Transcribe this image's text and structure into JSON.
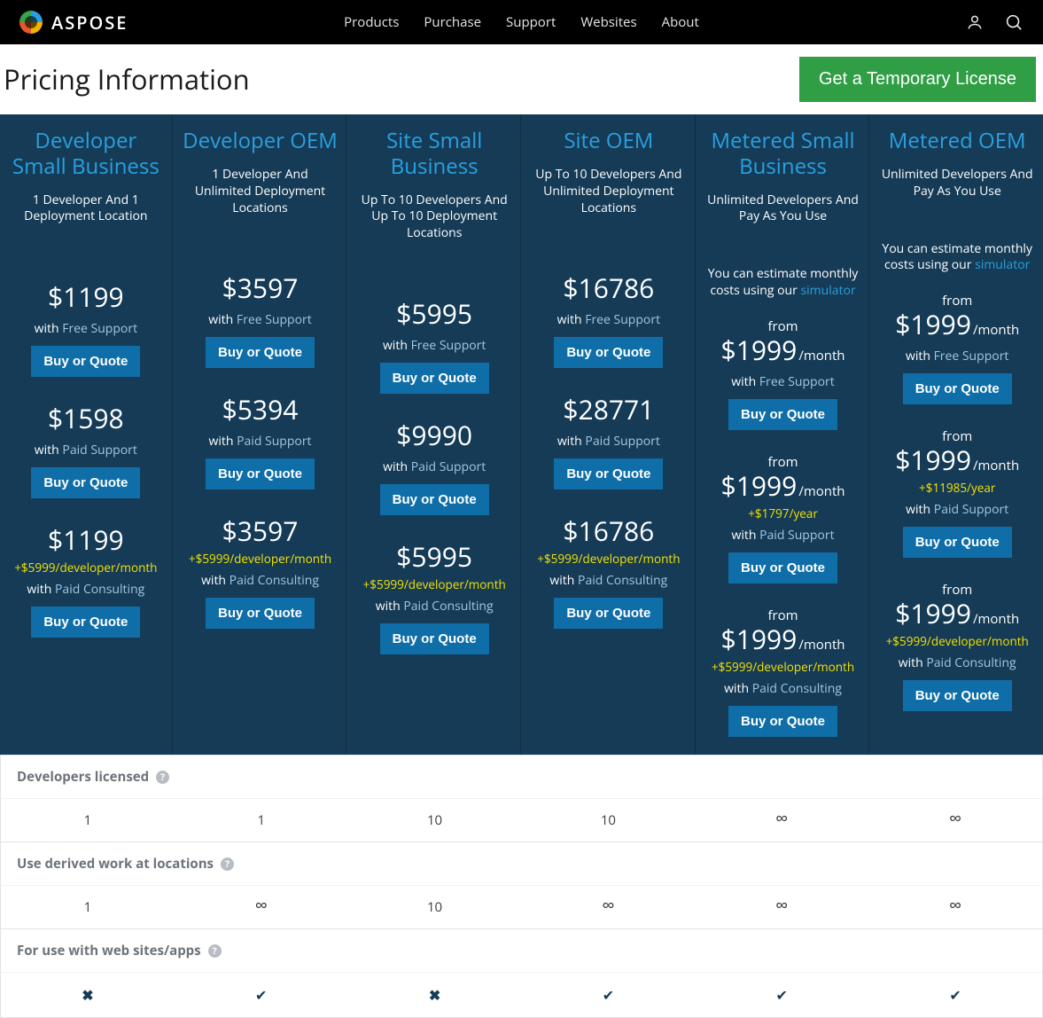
{
  "brand": "ASPOSE",
  "nav": [
    "Products",
    "Purchase",
    "Support",
    "Websites",
    "About"
  ],
  "page_title": "Pricing Information",
  "temp_license": "Get a Temporary License",
  "buy_label": "Buy or Quote",
  "with_prefix": "with ",
  "from_label": "from",
  "support": {
    "free": "Free Support",
    "paid": "Paid Support",
    "consulting": "Paid Consulting"
  },
  "estimator_prefix": "You can estimate monthly costs using our ",
  "estimator_link": "simulator",
  "plans": [
    {
      "title": "Developer Small Business",
      "sub": "1 Developer And 1 Deployment Location",
      "tiers": [
        {
          "price": "$1199",
          "support": "free"
        },
        {
          "price": "$1598",
          "support": "paid"
        },
        {
          "price": "$1199",
          "extra": "+$5999/developer/month",
          "support": "consulting"
        }
      ]
    },
    {
      "title": "Developer OEM",
      "sub": "1 Developer And Unlimited Deployment Locations",
      "tiers": [
        {
          "price": "$3597",
          "support": "free"
        },
        {
          "price": "$5394",
          "support": "paid"
        },
        {
          "price": "$3597",
          "extra": "+$5999/developer/month",
          "support": "consulting"
        }
      ]
    },
    {
      "title": "Site Small Business",
      "sub": "Up To 10 Developers And Up To 10 Deployment Locations",
      "tiers": [
        {
          "price": "$5995",
          "support": "free"
        },
        {
          "price": "$9990",
          "support": "paid"
        },
        {
          "price": "$5995",
          "extra": "+$5999/developer/month",
          "support": "consulting"
        }
      ]
    },
    {
      "title": "Site OEM",
      "sub": "Up To 10 Developers And Unlimited Deployment Locations",
      "tiers": [
        {
          "price": "$16786",
          "support": "free"
        },
        {
          "price": "$28771",
          "support": "paid"
        },
        {
          "price": "$16786",
          "extra": "+$5999/developer/month",
          "support": "consulting"
        }
      ]
    },
    {
      "title": "Metered Small Business",
      "sub": "Unlimited Developers And Pay As You Use",
      "metered": true,
      "tiers": [
        {
          "from": true,
          "price": "$1999",
          "suffix": "/month",
          "support": "free"
        },
        {
          "from": true,
          "price": "$1999",
          "suffix": "/month",
          "extra": "+$1797/year",
          "support": "paid"
        },
        {
          "from": true,
          "price": "$1999",
          "suffix": "/month",
          "extra": "+$5999/developer/month",
          "support": "consulting"
        }
      ]
    },
    {
      "title": "Metered OEM",
      "sub": "Unlimited Developers And Pay As You Use",
      "metered": true,
      "tiers": [
        {
          "from": true,
          "price": "$1999",
          "suffix": "/month",
          "support": "free"
        },
        {
          "from": true,
          "price": "$1999",
          "suffix": "/month",
          "extra": "+$11985/year",
          "support": "paid"
        },
        {
          "from": true,
          "price": "$1999",
          "suffix": "/month",
          "extra": "+$5999/developer/month",
          "support": "consulting"
        }
      ]
    }
  ],
  "compare": [
    {
      "label": "Developers licensed",
      "values": [
        "1",
        "1",
        "10",
        "10",
        "∞",
        "∞"
      ]
    },
    {
      "label": "Use derived work at locations",
      "values": [
        "1",
        "∞",
        "10",
        "∞",
        "∞",
        "∞"
      ]
    },
    {
      "label": "For use with web sites/apps",
      "values": [
        "✕",
        "✓",
        "✕",
        "✓",
        "✓",
        "✓"
      ]
    }
  ],
  "colors": {
    "topbar": "#000000",
    "panel": "#153b56",
    "accent": "#2aa0e0",
    "button": "#0f6ea8",
    "green": "#2f9e44",
    "highlight": "#f2e100"
  }
}
